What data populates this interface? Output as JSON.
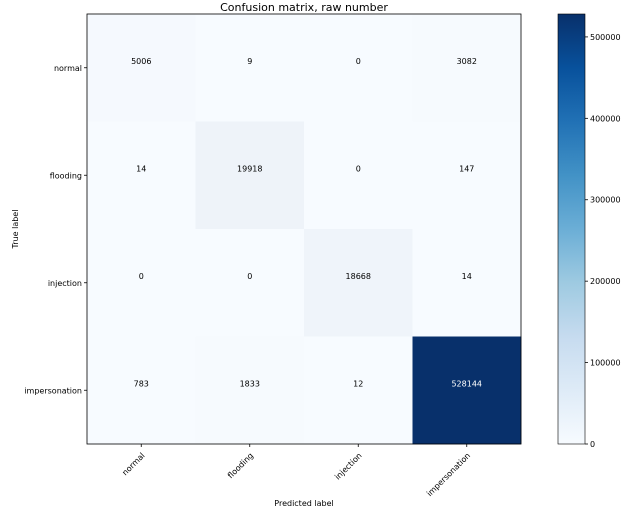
{
  "chart_data": {
    "type": "heatmap",
    "title": "Confusion matrix, raw number",
    "xlabel": "Predicted label",
    "ylabel": "True label",
    "x_categories": [
      "normal",
      "flooding",
      "injection",
      "impersonation"
    ],
    "y_categories": [
      "normal",
      "flooding",
      "injection",
      "impersonation"
    ],
    "values": [
      [
        5006,
        9,
        0,
        3082
      ],
      [
        14,
        19918,
        0,
        147
      ],
      [
        0,
        0,
        18668,
        14
      ],
      [
        783,
        1833,
        12,
        528144
      ]
    ],
    "colormap": "Blues",
    "color_low": "#f7fbff",
    "color_high": "#08306b",
    "colorbar": {
      "vmin": 0,
      "vmax": 528144,
      "ticks": [
        0,
        100000,
        200000,
        300000,
        400000,
        500000
      ]
    },
    "grid": false
  }
}
